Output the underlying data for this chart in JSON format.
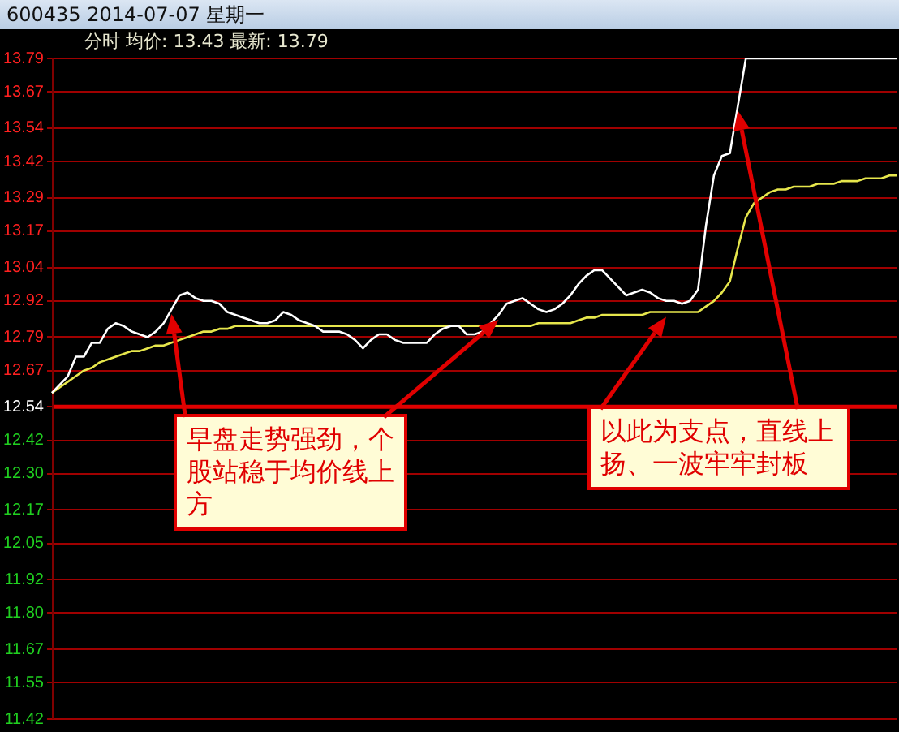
{
  "chart_data": {
    "type": "line",
    "title": "600435 2014-07-07 星期一",
    "subtitle": "分时 均价: 13.43 最新: 13.79",
    "categories": [
      null,
      null,
      null,
      null,
      null,
      null,
      null,
      null,
      null,
      null,
      null,
      null,
      null,
      null,
      null,
      null,
      null,
      null,
      null,
      null,
      null,
      null,
      null,
      null,
      null,
      null,
      null,
      null,
      null,
      null,
      null,
      null,
      null,
      null,
      null,
      null,
      null,
      null,
      null,
      null,
      null,
      null,
      null,
      null,
      null,
      null,
      null,
      null,
      null,
      null,
      null,
      null,
      null,
      null,
      null,
      null,
      null,
      null,
      null,
      null,
      null,
      null,
      null,
      null,
      null,
      null,
      null,
      null,
      null,
      null,
      null,
      null,
      null,
      null,
      null,
      null,
      null,
      null,
      null,
      null,
      null,
      null,
      null,
      null,
      null,
      null,
      null,
      null,
      null,
      null,
      null,
      null,
      null,
      null,
      null,
      null,
      null,
      null,
      null,
      null,
      null,
      null,
      null,
      null,
      null,
      null,
      null
    ],
    "series": [
      {
        "color": "#ffffff",
        "values": [
          12.59,
          12.62,
          12.65,
          12.72,
          12.72,
          12.77,
          12.77,
          12.82,
          12.84,
          12.83,
          12.81,
          12.8,
          12.79,
          12.81,
          12.84,
          12.89,
          12.94,
          12.95,
          12.93,
          12.92,
          12.92,
          12.91,
          12.88,
          12.87,
          12.86,
          12.85,
          12.84,
          12.84,
          12.85,
          12.88,
          12.87,
          12.85,
          12.84,
          12.83,
          12.81,
          12.81,
          12.81,
          12.8,
          12.78,
          12.75,
          12.78,
          12.8,
          12.8,
          12.78,
          12.77,
          12.77,
          12.77,
          12.77,
          12.8,
          12.82,
          12.83,
          12.83,
          12.8,
          12.8,
          12.81,
          12.84,
          12.87,
          12.91,
          12.92,
          12.93,
          12.91,
          12.89,
          12.88,
          12.89,
          12.91,
          12.94,
          12.98,
          13.01,
          13.03,
          13.03,
          13.0,
          12.97,
          12.94,
          12.95,
          12.96,
          12.95,
          12.93,
          12.92,
          12.92,
          12.91,
          12.92,
          12.96,
          13.19,
          13.37,
          13.44,
          13.45,
          13.62,
          13.79,
          13.79,
          13.79,
          13.79,
          13.79,
          13.79,
          13.79,
          13.79,
          13.79,
          13.79,
          13.79,
          13.79,
          13.79,
          13.79,
          13.79,
          13.79,
          13.79,
          13.79,
          13.79,
          13.79
        ]
      },
      {
        "color": "#e6e64c",
        "values": [
          12.59,
          12.61,
          12.63,
          12.65,
          12.67,
          12.68,
          12.7,
          12.71,
          12.72,
          12.73,
          12.74,
          12.74,
          12.75,
          12.76,
          12.76,
          12.77,
          12.78,
          12.79,
          12.8,
          12.81,
          12.81,
          12.82,
          12.82,
          12.83,
          12.83,
          12.83,
          12.83,
          12.83,
          12.83,
          12.83,
          12.83,
          12.83,
          12.83,
          12.83,
          12.83,
          12.83,
          12.83,
          12.83,
          12.83,
          12.83,
          12.83,
          12.83,
          12.83,
          12.83,
          12.83,
          12.83,
          12.83,
          12.83,
          12.83,
          12.83,
          12.83,
          12.83,
          12.83,
          12.83,
          12.83,
          12.83,
          12.83,
          12.83,
          12.83,
          12.83,
          12.83,
          12.84,
          12.84,
          12.84,
          12.84,
          12.84,
          12.85,
          12.86,
          12.86,
          12.87,
          12.87,
          12.87,
          12.87,
          12.87,
          12.87,
          12.88,
          12.88,
          12.88,
          12.88,
          12.88,
          12.88,
          12.88,
          12.9,
          12.92,
          12.95,
          12.99,
          13.11,
          13.22,
          13.27,
          13.29,
          13.31,
          13.32,
          13.32,
          13.33,
          13.33,
          13.33,
          13.34,
          13.34,
          13.34,
          13.35,
          13.35,
          13.35,
          13.36,
          13.36,
          13.36,
          13.37,
          13.37
        ]
      }
    ],
    "ylim": [
      11.42,
      13.79
    ],
    "yticks": [
      13.79,
      13.67,
      13.54,
      13.42,
      13.29,
      13.17,
      13.04,
      12.92,
      12.79,
      12.67,
      12.54,
      12.42,
      {
        "value": 12.3,
        "label": "12.30"
      },
      12.17,
      12.05,
      11.92,
      {
        "value": 11.8,
        "label": "11.80"
      },
      11.67,
      11.55,
      11.42
    ],
    "grid": "y",
    "marker": "none",
    "line_style": "solid",
    "ref_lines": [
      {
        "axis": "y",
        "value": 12.54,
        "color": "#e00000"
      }
    ],
    "annotations": [
      "早盘走势强劲，个股站稳于均价线上方",
      "以此为支点，直线上扬、一波牢牢封板"
    ]
  }
}
